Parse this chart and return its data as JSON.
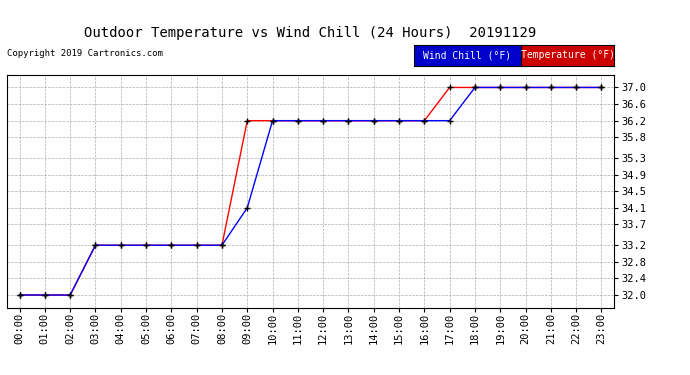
{
  "title": "Outdoor Temperature vs Wind Chill (24 Hours)  20191129",
  "copyright": "Copyright 2019 Cartronics.com",
  "wind_chill_color": "#0000ff",
  "temp_color": "#ff0000",
  "background_color": "#ffffff",
  "grid_color": "#999999",
  "ylim": [
    31.7,
    37.3
  ],
  "yticks": [
    32.0,
    32.4,
    32.8,
    33.2,
    33.7,
    34.1,
    34.5,
    34.9,
    35.3,
    35.8,
    36.2,
    36.6,
    37.0
  ],
  "hours": [
    "00:00",
    "01:00",
    "02:00",
    "03:00",
    "04:00",
    "05:00",
    "06:00",
    "07:00",
    "08:00",
    "09:00",
    "10:00",
    "11:00",
    "12:00",
    "13:00",
    "14:00",
    "15:00",
    "16:00",
    "17:00",
    "18:00",
    "19:00",
    "20:00",
    "21:00",
    "22:00",
    "23:00"
  ],
  "temp_x": [
    0,
    1,
    2,
    3,
    4,
    5,
    6,
    7,
    8,
    9,
    10,
    11,
    12,
    13,
    14,
    15,
    16,
    17,
    18,
    19,
    20,
    21,
    22,
    23
  ],
  "temp_y": [
    32.0,
    32.0,
    32.0,
    33.2,
    33.2,
    33.2,
    33.2,
    33.2,
    33.2,
    36.2,
    36.2,
    36.2,
    36.2,
    36.2,
    36.2,
    36.2,
    36.2,
    37.0,
    37.0,
    37.0,
    37.0,
    37.0,
    37.0,
    37.0
  ],
  "windchill_x": [
    0,
    1,
    2,
    3,
    4,
    5,
    6,
    7,
    8,
    9,
    10,
    11,
    12,
    13,
    14,
    15,
    16,
    17,
    18,
    19,
    20,
    21,
    22,
    23
  ],
  "windchill_y": [
    32.0,
    32.0,
    32.0,
    33.2,
    33.2,
    33.2,
    33.2,
    33.2,
    33.2,
    34.1,
    36.2,
    36.2,
    36.2,
    36.2,
    36.2,
    36.2,
    36.2,
    36.2,
    37.0,
    37.0,
    37.0,
    37.0,
    37.0,
    37.0
  ],
  "legend_wind_chill_label": "Wind Chill (°F)",
  "legend_temp_label": "Temperature (°F)",
  "legend_wind_chill_bg": "#0000cc",
  "legend_temp_bg": "#cc0000",
  "title_fontsize": 10,
  "tick_fontsize": 7.5
}
